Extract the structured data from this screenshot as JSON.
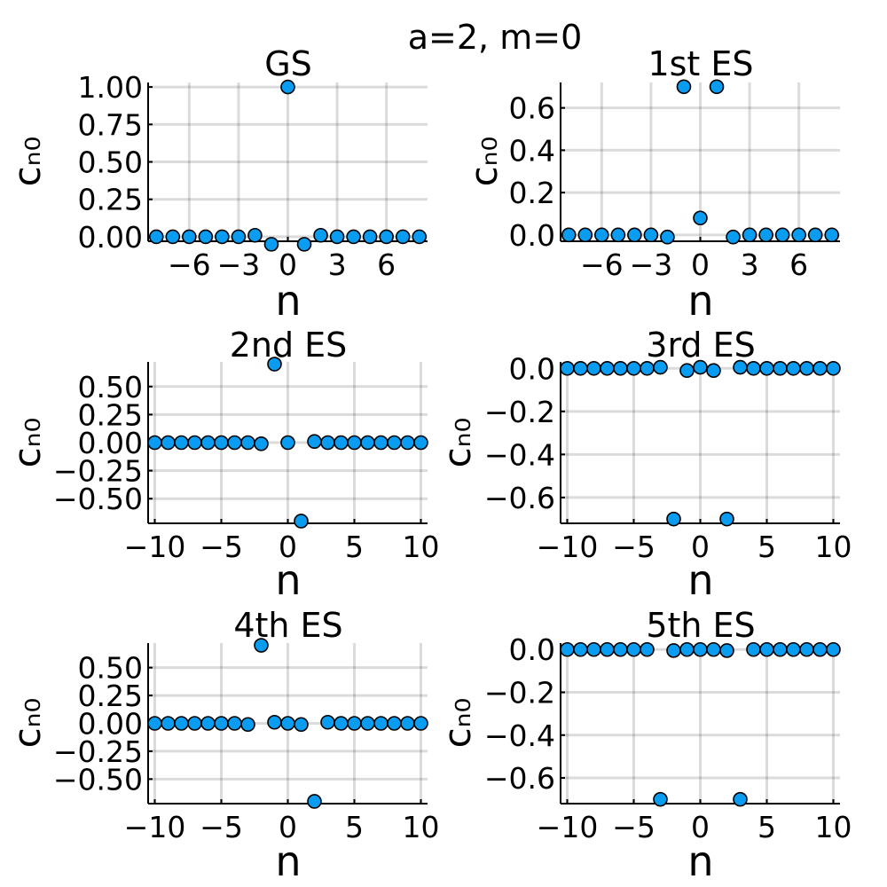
{
  "figure_title": "a=2, m=0",
  "chart_data": [
    {
      "type": "scatter",
      "title": "GS",
      "xlabel": "n",
      "ylabel": "cₙ₀",
      "xlim": [
        -8.5,
        8.5
      ],
      "ylim": [
        -0.03,
        1.03
      ],
      "xticks": [
        -6,
        -3,
        0,
        3,
        6
      ],
      "xtick_labels": [
        "−6",
        "−3",
        "0",
        "3",
        "6"
      ],
      "yticks": [
        0,
        0.25,
        0.5,
        0.75,
        1.0
      ],
      "ytick_labels": [
        "0.00",
        "0.25",
        "0.50",
        "0.75",
        "1.00"
      ],
      "grid": true,
      "series": [
        {
          "x": [
            -8,
            -7,
            -6,
            -5,
            -4,
            -3,
            -2,
            -1,
            0,
            1,
            2,
            3,
            4,
            5,
            6,
            7,
            8
          ],
          "y": [
            0.0,
            0.0,
            0.0,
            0.0,
            0.0,
            0.0,
            0.01,
            -0.05,
            1.0,
            -0.05,
            0.01,
            0.0,
            0.0,
            0.0,
            0.0,
            0.0,
            0.0
          ]
        }
      ]
    },
    {
      "type": "scatter",
      "title": "1st ES",
      "xlabel": "n",
      "ylabel": "cₙ₀",
      "xlim": [
        -8.5,
        8.5
      ],
      "ylim": [
        -0.03,
        0.72
      ],
      "xticks": [
        -6,
        -3,
        0,
        3,
        6
      ],
      "xtick_labels": [
        "−6",
        "−3",
        "0",
        "3",
        "6"
      ],
      "yticks": [
        0,
        0.2,
        0.4,
        0.6
      ],
      "ytick_labels": [
        "0.0",
        "0.2",
        "0.4",
        "0.6"
      ],
      "grid": true,
      "series": [
        {
          "x": [
            -8,
            -7,
            -6,
            -5,
            -4,
            -3,
            -2,
            -1,
            0,
            1,
            2,
            3,
            4,
            5,
            6,
            7,
            8
          ],
          "y": [
            0.0,
            0.0,
            0.0,
            0.0,
            0.0,
            0.0,
            -0.01,
            0.7,
            0.08,
            0.7,
            -0.01,
            0.0,
            0.0,
            0.0,
            0.0,
            0.0,
            0.0
          ]
        }
      ]
    },
    {
      "type": "scatter",
      "title": "2nd ES",
      "xlabel": "n",
      "ylabel": "cₙ₀",
      "xlim": [
        -10.5,
        10.5
      ],
      "ylim": [
        -0.72,
        0.72
      ],
      "xticks": [
        -10,
        -5,
        0,
        5,
        10
      ],
      "xtick_labels": [
        "−10",
        "−5",
        "0",
        "5",
        "10"
      ],
      "yticks": [
        -0.5,
        -0.25,
        0,
        0.25,
        0.5
      ],
      "ytick_labels": [
        "−0.50",
        "−0.25",
        "0.00",
        "0.25",
        "0.50"
      ],
      "grid": true,
      "series": [
        {
          "x": [
            -10,
            -9,
            -8,
            -7,
            -6,
            -5,
            -4,
            -3,
            -2,
            -1,
            0,
            1,
            2,
            3,
            4,
            5,
            6,
            7,
            8,
            9,
            10
          ],
          "y": [
            0.0,
            0.0,
            0.0,
            0.0,
            0.0,
            0.0,
            0.0,
            0.0,
            -0.01,
            0.7,
            0.0,
            -0.7,
            0.01,
            0.0,
            0.0,
            0.0,
            0.0,
            0.0,
            0.0,
            0.0,
            0.0
          ]
        }
      ]
    },
    {
      "type": "scatter",
      "title": "3rd ES",
      "xlabel": "n",
      "ylabel": "cₙ₀",
      "xlim": [
        -10.5,
        10.5
      ],
      "ylim": [
        -0.72,
        0.03
      ],
      "xticks": [
        -10,
        -5,
        0,
        5,
        10
      ],
      "xtick_labels": [
        "−10",
        "−5",
        "0",
        "5",
        "10"
      ],
      "yticks": [
        -0.6,
        -0.4,
        -0.2,
        0.0
      ],
      "ytick_labels": [
        "−0.6",
        "−0.4",
        "−0.2",
        "0.0"
      ],
      "grid": true,
      "series": [
        {
          "x": [
            -10,
            -9,
            -8,
            -7,
            -6,
            -5,
            -4,
            -3,
            -2,
            -1,
            0,
            1,
            2,
            3,
            4,
            5,
            6,
            7,
            8,
            9,
            10
          ],
          "y": [
            0.0,
            0.0,
            0.0,
            0.0,
            0.0,
            0.0,
            0.0,
            0.005,
            -0.7,
            -0.01,
            0.005,
            -0.01,
            -0.7,
            0.005,
            0.0,
            0.0,
            0.0,
            0.0,
            0.0,
            0.0,
            0.0
          ]
        }
      ]
    },
    {
      "type": "scatter",
      "title": "4th ES",
      "xlabel": "n",
      "ylabel": "cₙ₀",
      "xlim": [
        -10.5,
        10.5
      ],
      "ylim": [
        -0.72,
        0.72
      ],
      "xticks": [
        -10,
        -5,
        0,
        5,
        10
      ],
      "xtick_labels": [
        "−10",
        "−5",
        "0",
        "5",
        "10"
      ],
      "yticks": [
        -0.5,
        -0.25,
        0,
        0.25,
        0.5
      ],
      "ytick_labels": [
        "−0.50",
        "−0.25",
        "0.00",
        "0.25",
        "0.50"
      ],
      "grid": true,
      "series": [
        {
          "x": [
            -10,
            -9,
            -8,
            -7,
            -6,
            -5,
            -4,
            -3,
            -2,
            -1,
            0,
            1,
            2,
            3,
            4,
            5,
            6,
            7,
            8,
            9,
            10
          ],
          "y": [
            0.0,
            0.0,
            0.0,
            0.0,
            0.0,
            0.0,
            0.0,
            -0.01,
            0.7,
            0.01,
            0.0,
            -0.01,
            -0.7,
            0.01,
            0.0,
            0.0,
            0.0,
            0.0,
            0.0,
            0.0,
            0.0
          ]
        }
      ]
    },
    {
      "type": "scatter",
      "title": "5th ES",
      "xlabel": "n",
      "ylabel": "cₙ₀",
      "xlim": [
        -10.5,
        10.5
      ],
      "ylim": [
        -0.72,
        0.03
      ],
      "xticks": [
        -10,
        -5,
        0,
        5,
        10
      ],
      "xtick_labels": [
        "−10",
        "−5",
        "0",
        "5",
        "10"
      ],
      "yticks": [
        -0.6,
        -0.4,
        -0.2,
        0.0
      ],
      "ytick_labels": [
        "−0.6",
        "−0.4",
        "−0.2",
        "0.0"
      ],
      "grid": true,
      "series": [
        {
          "x": [
            -10,
            -9,
            -8,
            -7,
            -6,
            -5,
            -4,
            -3,
            -2,
            -1,
            0,
            1,
            2,
            3,
            4,
            5,
            6,
            7,
            8,
            9,
            10
          ],
          "y": [
            0.0,
            0.0,
            0.0,
            0.0,
            0.0,
            0.0,
            0.0,
            -0.7,
            -0.005,
            0.0,
            0.0,
            0.0,
            -0.005,
            -0.7,
            0.0,
            0.0,
            0.0,
            0.0,
            0.0,
            0.0,
            0.0
          ]
        }
      ]
    }
  ]
}
